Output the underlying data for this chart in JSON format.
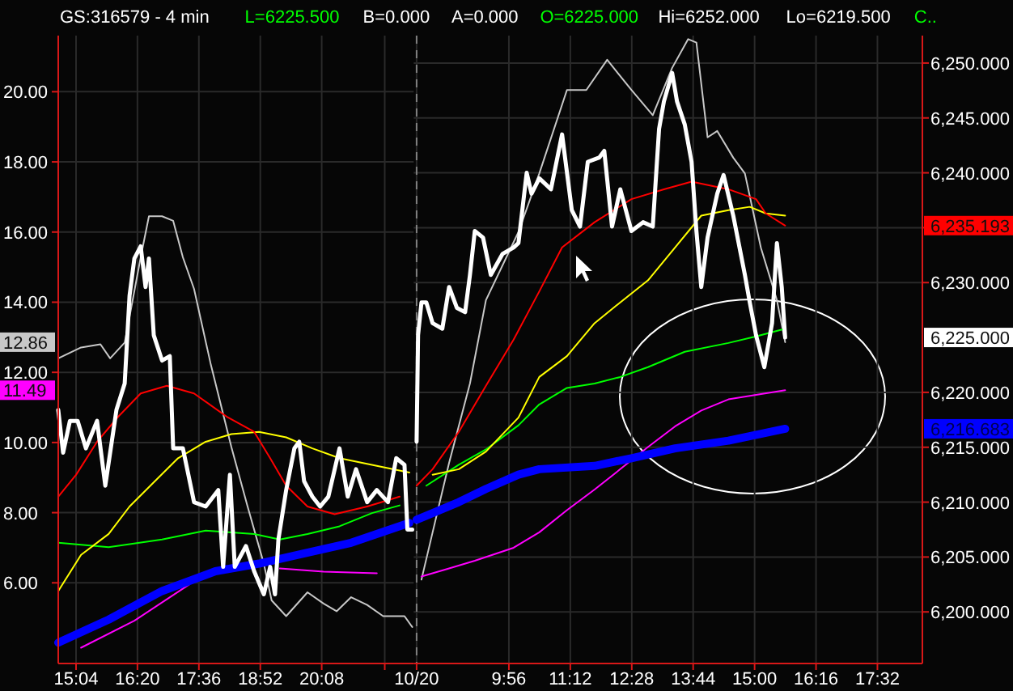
{
  "chart_data": [
    {
      "type": "line",
      "title": "GS:316579 - 4 min",
      "annotations": [
        "L=6225.500",
        "B=0.000",
        "A=0.000",
        "O=6225.000",
        "Hi=6252.000",
        "Lo=6219.500",
        "C.."
      ],
      "xlim": [
        14.7,
        22.03
      ],
      "xticks": [
        {
          "value": 15.067,
          "label": "15:04"
        },
        {
          "value": 16.333,
          "label": "16:20"
        },
        {
          "value": 17.6,
          "label": "17:36"
        },
        {
          "value": 18.867,
          "label": "18:52"
        },
        {
          "value": 20.133,
          "label": "20:08"
        },
        {
          "value": 21.433,
          "label": null
        }
      ],
      "ylim": [
        3.7,
        21.6
      ],
      "yticks": [
        {
          "value": 6,
          "label": "6.00"
        },
        {
          "value": 8,
          "label": "8.00"
        },
        {
          "value": 10,
          "label": "10.00"
        },
        {
          "value": 11.49,
          "label": "11.49"
        },
        {
          "value": 12,
          "label": "12.00"
        },
        {
          "value": 12.86,
          "label": "12.86"
        },
        {
          "value": 14,
          "label": "14.00"
        },
        {
          "value": 16,
          "label": "16.00"
        },
        {
          "value": 18,
          "label": "18.00"
        },
        {
          "value": 20,
          "label": "20.00"
        }
      ],
      "y2lim": [
        6195.3,
        6252.5
      ],
      "grid": true,
      "series": [
        {
          "color": "#c8c8c8",
          "x": [
            14.7,
            15.17,
            15.57,
            15.77,
            16.07,
            16.4,
            16.57,
            16.84,
            17.07,
            17.27,
            17.5,
            17.84,
            18.27,
            18.6,
            18.94,
            19.1,
            19.4,
            19.84,
            20.17,
            20.44,
            20.74,
            21.07,
            21.4,
            21.84,
            22.0
          ],
          "values": [
            12.4,
            12.71,
            12.8,
            12.4,
            12.85,
            15.28,
            16.45,
            16.45,
            16.32,
            15.28,
            14.38,
            12.26,
            9.87,
            8.2,
            6.54,
            5.5,
            5.05,
            5.73,
            5.41,
            5.19,
            5.59,
            5.37,
            5.05,
            5.05,
            4.74
          ]
        },
        {
          "color": "#ff00ff",
          "x": [
            15.17,
            16.27,
            17.4,
            18.17,
            18.74,
            19.27,
            20.17,
            21.27
          ],
          "values": [
            4.15,
            4.92,
            5.95,
            null,
            null,
            6.41,
            6.32,
            6.27
          ]
        },
        {
          "color": "#00ff00",
          "axis": "y2",
          "x": [
            14.7,
            15.74,
            16.84,
            17.74,
            18.74,
            19.27,
            19.84,
            20.5,
            21.17,
            21.74
          ],
          "values": [
            6206.3,
            6205.9,
            6206.6,
            6207.4,
            6207.1,
            6206.6,
            6207.1,
            6207.8,
            6209.0,
            6209.7
          ]
        },
        {
          "color": "#ffff00",
          "axis": "y2",
          "x": [
            14.7,
            15.17,
            15.74,
            16.17,
            16.6,
            17.17,
            17.74,
            18.27,
            18.84,
            19.4,
            19.94,
            20.5,
            21.27,
            21.94
          ],
          "values": [
            6201.9,
            6205.2,
            6207.1,
            6209.6,
            6211.5,
            6214.0,
            6215.5,
            6216.2,
            6216.4,
            6215.9,
            6214.9,
            6214.0,
            6213.3,
            6212.7
          ]
        },
        {
          "color": "#ff0000",
          "axis": "y2",
          "x": [
            14.7,
            15.07,
            15.5,
            15.94,
            16.4,
            16.94,
            17.5,
            18.17,
            18.74,
            19.07,
            19.4,
            19.84,
            20.4,
            21.07,
            21.74
          ],
          "values": [
            6210.5,
            6212.5,
            6215.5,
            6217.8,
            6219.9,
            6220.6,
            6219.9,
            6217.8,
            6216.4,
            6214.0,
            6211.5,
            6209.6,
            6208.9,
            6209.6,
            6210.5
          ]
        },
        {
          "color": "#0000ff",
          "axis": "y2",
          "x": [
            14.7,
            15.74,
            16.84,
            17.94,
            18.84,
            19.74,
            20.74,
            21.94
          ],
          "values": [
            6197.2,
            6199.3,
            6201.9,
            6203.7,
            6204.4,
            6205.3,
            6206.3,
            6208.1
          ]
        },
        {
          "color": "#ffffff",
          "axis": "y2",
          "x": [
            14.7,
            14.8,
            14.94,
            15.1,
            15.27,
            15.5,
            15.67,
            15.9,
            16.07,
            16.17,
            16.27,
            16.4,
            16.5,
            16.57,
            16.67,
            16.84,
            17.0,
            17.07,
            17.27,
            17.5,
            17.74,
            18.0,
            18.1,
            18.24,
            18.34,
            18.57,
            18.74,
            18.94,
            19.07,
            19.17,
            19.24,
            19.4,
            19.57,
            19.67,
            19.77,
            19.94,
            20.1,
            20.27,
            20.5,
            20.67,
            20.84,
            21.07,
            21.27,
            21.5,
            21.67,
            21.84,
            21.9,
            22.0
          ],
          "values": [
            6218.4,
            6214.5,
            6217.4,
            6217.4,
            6214.9,
            6217.4,
            6211.5,
            6218.4,
            6220.8,
            6228.8,
            6232.2,
            6233.3,
            6229.6,
            6232.2,
            6225.2,
            6222.9,
            6223.3,
            6214.9,
            6214.9,
            6210.0,
            6209.6,
            6211.1,
            6204.1,
            6212.5,
            6204.1,
            6206.0,
            6203.7,
            6201.6,
            6204.1,
            6201.6,
            6206.6,
            6211.1,
            6214.9,
            6215.5,
            6211.9,
            6210.5,
            6209.6,
            6210.5,
            6214.9,
            6210.5,
            6213.0,
            6210.0,
            6211.1,
            6210.0,
            6214.0,
            6213.4,
            6207.5,
            6207.5
          ]
        }
      ]
    },
    {
      "type": "line",
      "xlim": [
        7.97,
        18.46
      ],
      "xticks": [
        {
          "value": 8.03,
          "label": "10/20"
        },
        {
          "value": 9.933,
          "label": "9:56"
        },
        {
          "value": 11.2,
          "label": "11:12"
        },
        {
          "value": 12.467,
          "label": "12:28"
        },
        {
          "value": 13.733,
          "label": "13:44"
        },
        {
          "value": 15.0,
          "label": "15:00"
        },
        {
          "value": 16.267,
          "label": "16:16"
        },
        {
          "value": 17.533,
          "label": "17:32"
        }
      ],
      "ylim": [
        3.7,
        21.6
      ],
      "y2lim": [
        6195.3,
        6252.5
      ],
      "y2ticks": [
        {
          "value": 6200,
          "label": "6,200.000"
        },
        {
          "value": 6205,
          "label": "6,205.000"
        },
        {
          "value": 6210,
          "label": "6,210.000"
        },
        {
          "value": 6215,
          "label": "6,215.000"
        },
        {
          "value": 6216.683,
          "label": "6,216.683"
        },
        {
          "value": 6220,
          "label": "6,220.000"
        },
        {
          "value": 6225,
          "label": "6,225.000"
        },
        {
          "value": 6230,
          "label": "6,230.000"
        },
        {
          "value": 6235,
          "label": null
        },
        {
          "value": 6235.193,
          "label": "6,235.193"
        },
        {
          "value": 6240,
          "label": "6,240.000"
        },
        {
          "value": 6245,
          "label": "6,245.000"
        },
        {
          "value": 6250,
          "label": "6,250.000"
        }
      ],
      "grid": true,
      "ref_lines": [
        {
          "axis": "x",
          "value": 8.03,
          "label": null,
          "color": "#808080",
          "line_style": "dashed"
        }
      ],
      "series": [
        {
          "color": "#c8c8c8",
          "x": [
            8.13,
            8.36,
            8.7,
            9.13,
            9.46,
            10.13,
            10.56,
            11.13,
            11.53,
            11.96,
            12.46,
            12.9,
            13.3,
            13.63,
            13.8,
            14.03,
            14.23,
            14.56,
            14.8,
            15.13,
            15.46,
            15.63
          ],
          "values": [
            6.09,
            7.44,
            9.42,
            11.68,
            14.06,
            16.0,
            17.67,
            20.05,
            20.05,
            20.91,
            20.05,
            19.33,
            20.68,
            21.5,
            21.4,
            18.7,
            18.88,
            18.12,
            17.67,
            15.55,
            14.06,
            12.86
          ]
        },
        {
          "color": "#ff00ff",
          "x": [
            8.13,
            8.7,
            9.23,
            10.03,
            10.56,
            11.13,
            11.7,
            12.23,
            12.8,
            13.36,
            13.9,
            14.46,
            15.03,
            15.63
          ],
          "values": [
            6.18,
            6.41,
            6.63,
            7.0,
            7.44,
            8.07,
            8.66,
            9.24,
            9.87,
            10.46,
            10.91,
            11.23,
            11.36,
            11.49
          ]
        },
        {
          "color": "#00ff00",
          "axis": "y2",
          "x": [
            8.23,
            8.9,
            9.46,
            10.13,
            10.56,
            11.13,
            11.7,
            12.23,
            12.8,
            13.56,
            14.46,
            15.03,
            15.63
          ],
          "values": [
            6211.5,
            6213.4,
            6214.8,
            6217.0,
            6218.9,
            6220.4,
            6220.8,
            6221.4,
            6222.3,
            6223.7,
            6224.5,
            6225.1,
            6225.8
          ]
        },
        {
          "color": "#ffff00",
          "axis": "y2",
          "x": [
            8.36,
            8.9,
            9.46,
            10.13,
            10.56,
            11.13,
            11.7,
            12.23,
            12.8,
            13.36,
            13.9,
            14.46,
            14.9,
            15.23,
            15.63
          ],
          "values": [
            6212.5,
            6213.0,
            6214.6,
            6217.7,
            6221.4,
            6223.3,
            6226.3,
            6228.2,
            6230.2,
            6233.2,
            6236.1,
            6236.6,
            6236.9,
            6236.3,
            6236.1
          ]
        },
        {
          "color": "#ff0000",
          "axis": "y2",
          "x": [
            8.03,
            8.36,
            8.9,
            9.46,
            10.03,
            10.56,
            11.03,
            11.7,
            12.46,
            13.13,
            13.7,
            14.46,
            15.03,
            15.23,
            15.63
          ],
          "values": [
            6211.5,
            6213.0,
            6216.4,
            6220.6,
            6224.8,
            6229.2,
            6233.2,
            6235.5,
            6237.6,
            6238.5,
            6239.2,
            6238.5,
            6237.6,
            6236.3,
            6235.193
          ]
        },
        {
          "color": "#0000ff",
          "axis": "y2",
          "x": [
            8.03,
            8.9,
            9.46,
            10.13,
            10.56,
            11.7,
            12.46,
            13.36,
            14.46,
            15.63
          ],
          "values": [
            6208.4,
            6210.0,
            6211.2,
            6212.5,
            6213.0,
            6213.3,
            6214.0,
            6214.9,
            6215.6,
            6216.683
          ]
        },
        {
          "color": "#ffffff",
          "axis": "y2",
          "x": [
            8.03,
            8.06,
            8.13,
            8.23,
            8.36,
            8.56,
            8.7,
            8.86,
            9.03,
            9.13,
            9.23,
            9.4,
            9.56,
            9.8,
            10.03,
            10.13,
            10.3,
            10.4,
            10.56,
            10.8,
            11.03,
            11.23,
            11.4,
            11.56,
            11.8,
            11.9,
            12.06,
            12.23,
            12.46,
            12.7,
            12.9,
            13.03,
            13.13,
            13.3,
            13.4,
            13.56,
            13.7,
            13.8,
            13.9,
            14.03,
            14.23,
            14.36,
            14.56,
            14.8,
            14.9,
            15.03,
            15.2,
            15.36,
            15.46,
            15.56,
            15.63
          ],
          "values": [
            6215.5,
            6225.2,
            6228.2,
            6228.2,
            6226.3,
            6225.8,
            6229.6,
            6227.7,
            6227.3,
            6230.7,
            6234.7,
            6234.1,
            6230.7,
            6232.6,
            6233.2,
            6233.6,
            6240.0,
            6238.1,
            6239.5,
            6238.5,
            6243.5,
            6236.6,
            6235.1,
            6241.0,
            6241.4,
            6242.0,
            6235.1,
            6238.5,
            6234.7,
            6235.5,
            6235.1,
            6244.0,
            6246.5,
            6249.1,
            6246.5,
            6244.4,
            6241.0,
            6234.7,
            6229.6,
            6234.1,
            6238.1,
            6239.8,
            6236.1,
            6230.7,
            6228.2,
            6225.2,
            6222.3,
            6226.3,
            6233.6,
            6229.6,
            6225.0
          ]
        }
      ]
    }
  ]
}
